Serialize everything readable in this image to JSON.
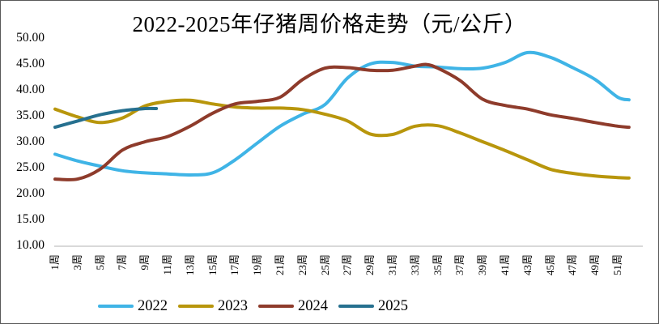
{
  "window": {
    "background": "#ffffff",
    "border_color": "#595959"
  },
  "chart_data": {
    "type": "line",
    "title": "2022-2025年仔猪周价格走势（元/公斤）",
    "unit": "元/公斤",
    "xlabel": "",
    "ylabel": "",
    "ylim": [
      10,
      50
    ],
    "ytick_step": 5,
    "grid": false,
    "smooth_lines": true,
    "legend_position": "bottom",
    "axis_line_color": "#D9D9D9",
    "text_color": "#000000",
    "y_ticks": [
      "50.00",
      "45.00",
      "40.00",
      "35.00",
      "30.00",
      "25.00",
      "20.00",
      "15.00",
      "10.00"
    ],
    "x_ticks": [
      "1周",
      "3周",
      "5周",
      "7周",
      "9周",
      "11周",
      "13周",
      "15周",
      "17周",
      "19周",
      "21周",
      "23周",
      "25周",
      "27周",
      "29周",
      "31周",
      "33周",
      "35周",
      "37周",
      "39周",
      "41周",
      "43周",
      "45周",
      "47周",
      "49周",
      "51周"
    ],
    "series": [
      {
        "name": "2022",
        "color": "#3FB4E6",
        "x": [
          1,
          3,
          5,
          7,
          9,
          11,
          13,
          15,
          17,
          19,
          21,
          23,
          25,
          27,
          29,
          31,
          33,
          35,
          37,
          39,
          41,
          43,
          45,
          47,
          49,
          51,
          52
        ],
        "values": [
          27.6,
          26.3,
          25.3,
          24.4,
          24.0,
          23.8,
          23.6,
          24.0,
          26.5,
          29.8,
          33.0,
          35.3,
          37.2,
          42.3,
          45.0,
          45.3,
          44.6,
          44.4,
          44.1,
          44.2,
          45.3,
          47.2,
          46.3,
          44.3,
          42.0,
          38.6,
          38.1
        ]
      },
      {
        "name": "2023",
        "color": "#B8960C",
        "x": [
          1,
          3,
          5,
          7,
          9,
          11,
          13,
          15,
          17,
          19,
          21,
          23,
          25,
          27,
          29,
          31,
          33,
          35,
          37,
          39,
          41,
          43,
          45,
          47,
          49,
          51,
          52
        ],
        "values": [
          36.3,
          34.8,
          33.7,
          34.6,
          36.9,
          37.8,
          38.0,
          37.3,
          36.7,
          36.5,
          36.5,
          36.2,
          35.3,
          34.0,
          31.5,
          31.4,
          33.0,
          33.1,
          31.7,
          30.0,
          28.3,
          26.5,
          24.7,
          23.9,
          23.4,
          23.1,
          23.0
        ]
      },
      {
        "name": "2024",
        "color": "#8E3B2B",
        "x": [
          1,
          3,
          5,
          7,
          9,
          11,
          13,
          15,
          17,
          19,
          21,
          23,
          25,
          27,
          29,
          31,
          33,
          34,
          35,
          37,
          39,
          41,
          43,
          45,
          47,
          49,
          51,
          52
        ],
        "values": [
          22.8,
          22.8,
          24.7,
          28.4,
          30.0,
          31.0,
          33.0,
          35.5,
          37.3,
          37.8,
          38.6,
          42.0,
          44.2,
          44.3,
          43.8,
          43.8,
          44.6,
          44.9,
          44.2,
          41.8,
          38.2,
          37.0,
          36.3,
          35.2,
          34.5,
          33.7,
          33.0,
          32.8
        ]
      },
      {
        "name": "2025",
        "color": "#26708F",
        "x": [
          1,
          3,
          5,
          7,
          9,
          10
        ],
        "values": [
          32.8,
          34.0,
          35.2,
          36.0,
          36.4,
          36.4
        ]
      }
    ]
  }
}
